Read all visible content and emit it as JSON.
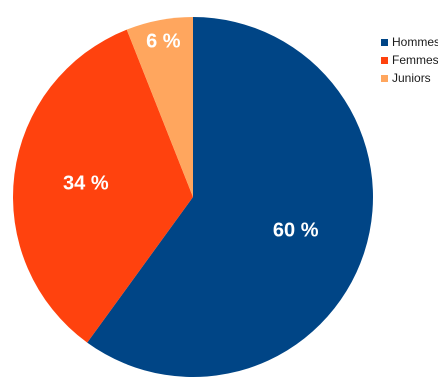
{
  "chart_data": {
    "type": "pie",
    "title": "",
    "series": [
      {
        "name": "Hommes",
        "value": 60,
        "label": "60 %",
        "color": "#004586"
      },
      {
        "name": "Femmes",
        "value": 34,
        "label": "34 %",
        "color": "#ff420e"
      },
      {
        "name": "Juniors",
        "value": 6,
        "label": "6 %",
        "color": "#ffa65e"
      }
    ],
    "start_angle_deg": 0,
    "direction": "clockwise",
    "legend_position": "top-right"
  }
}
